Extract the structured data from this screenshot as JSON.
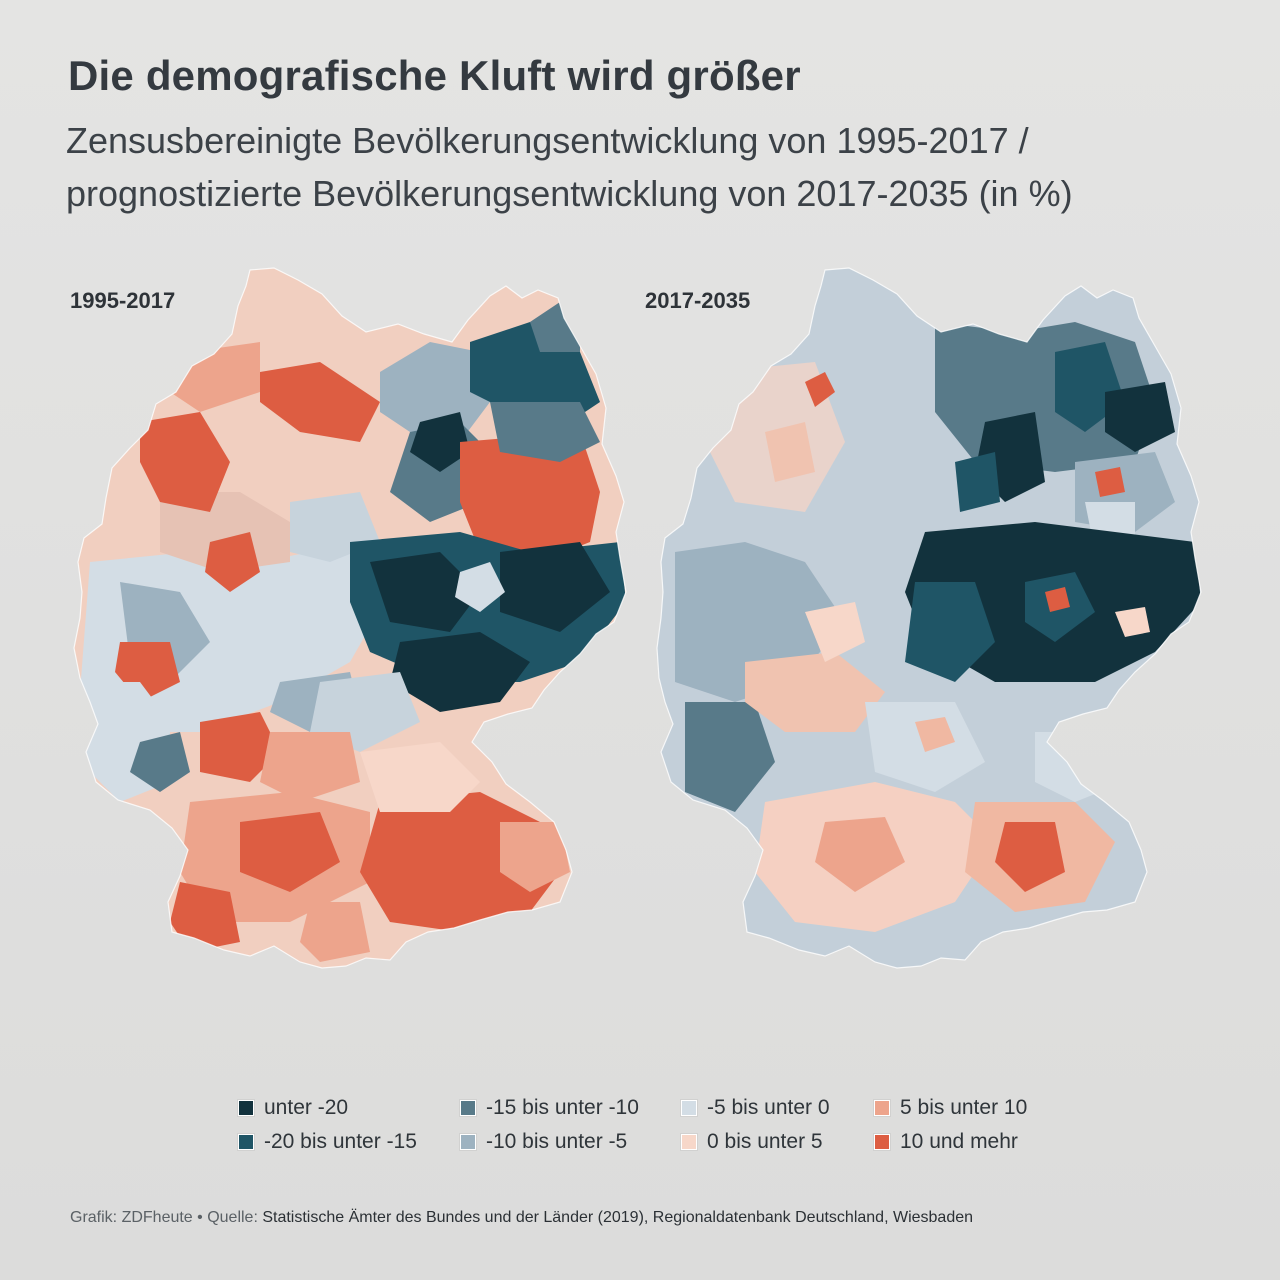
{
  "title": "Die demografische Kluft wird größer",
  "subtitle": "Zensusbereinigte Bevölkerungsentwicklung von 1995-2017 / prognostizierte Bevölkerungsentwicklung von 2017-2035 (in %)",
  "maps": [
    {
      "label": "1995-2017"
    },
    {
      "label": "2017-2035"
    }
  ],
  "legend": [
    {
      "label": "unter -20",
      "color": "#12323d"
    },
    {
      "label": "-20 bis unter -15",
      "color": "#1f5566"
    },
    {
      "label": "-15 bis unter -10",
      "color": "#587a89"
    },
    {
      "label": "-10 bis unter -5",
      "color": "#9db2c0"
    },
    {
      "label": "-5 bis unter 0",
      "color": "#d3dde5"
    },
    {
      "label": "0 bis unter 5",
      "color": "#f7d7c9"
    },
    {
      "label": "5 bis unter 10",
      "color": "#eda48c"
    },
    {
      "label": "10 und mehr",
      "color": "#dd5d42"
    }
  ],
  "footer": {
    "credit": "Grafik: ZDFheute • Quelle:",
    "source": "Statistische Ämter des Bundes und der Länder (2019), Regionaldatenbank Deutschland, Wiesbaden"
  }
}
